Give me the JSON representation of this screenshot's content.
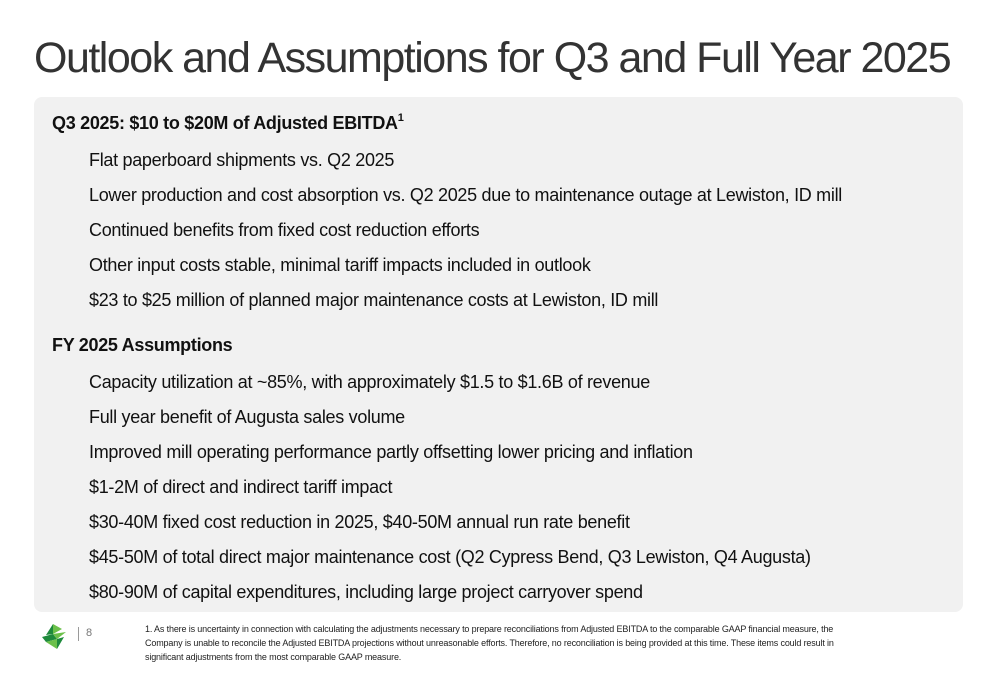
{
  "title": "Outlook and Assumptions for Q3 and Full Year 2025",
  "q3": {
    "heading": "Q3 2025: $10 to $20M of Adjusted EBITDA",
    "heading_sup": "1",
    "bullets": [
      "Flat paperboard shipments vs. Q2 2025",
      "Lower production and cost absorption vs. Q2 2025 due to maintenance outage at Lewiston, ID mill",
      "Continued benefits from fixed cost reduction efforts",
      "Other input costs stable, minimal tariff impacts included in outlook",
      "$23 to $25 million of planned major maintenance costs at Lewiston, ID mill"
    ]
  },
  "fy": {
    "heading": "FY 2025 Assumptions",
    "bullets": [
      "Capacity utilization at ~85%, with approximately $1.5 to $1.6B of revenue",
      "Full year benefit of Augusta sales volume",
      "Improved mill operating performance partly offsetting lower pricing and inflation",
      "$1-2M of direct and indirect tariff impact",
      "$30-40M fixed cost reduction in 2025, $40-50M annual run rate benefit",
      "$45-50M of total direct major maintenance cost (Q2 Cypress Bend, Q3 Lewiston, Q4 Augusta)",
      "$80-90M of capital expenditures, including large project carryover spend"
    ]
  },
  "footer": {
    "page_number": "8",
    "footnote": "1. As there is uncertainty in connection with calculating the adjustments necessary to prepare reconciliations from Adjusted EBITDA to the comparable GAAP financial measure, the Company is unable to reconcile the Adjusted EBITDA projections without unreasonable efforts. Therefore, no reconciliation is being provided at this time. These items could result in significant adjustments from the most comparable GAAP measure.",
    "logo_icon": "company-logo-icon"
  },
  "colors": {
    "panel_background": "#f1f1f1",
    "logo_dark_green": "#1e8a3c",
    "logo_light_green": "#6cc04a"
  }
}
